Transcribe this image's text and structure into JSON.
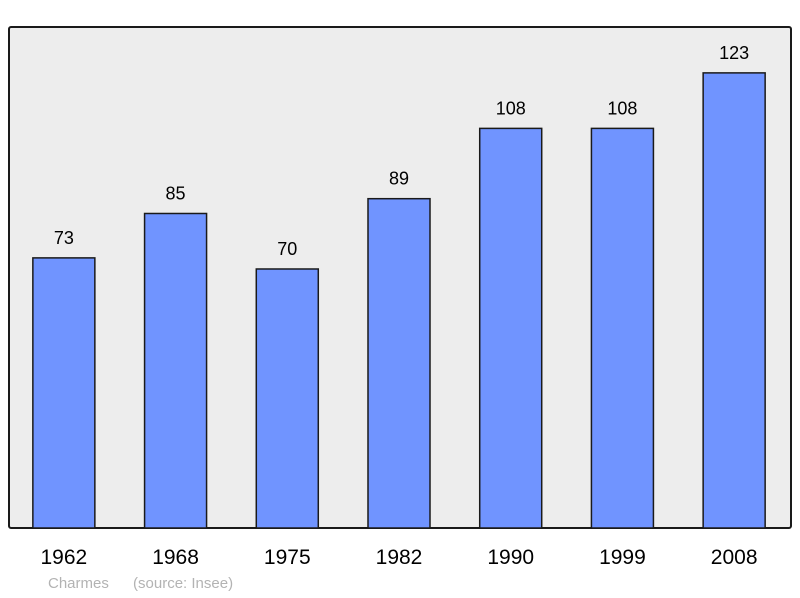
{
  "chart_data": {
    "type": "bar",
    "categories": [
      "1962",
      "1968",
      "1975",
      "1982",
      "1990",
      "1999",
      "2008"
    ],
    "values": [
      73,
      85,
      70,
      89,
      108,
      108,
      123
    ],
    "title": "",
    "xlabel": "",
    "ylabel": "",
    "ylim": [
      0,
      135.4
    ],
    "grid": false,
    "bar_color": "#7094ff",
    "background_color": "#ededed"
  },
  "footer": {
    "place": "Charmes",
    "source": "(source: Insee)"
  }
}
